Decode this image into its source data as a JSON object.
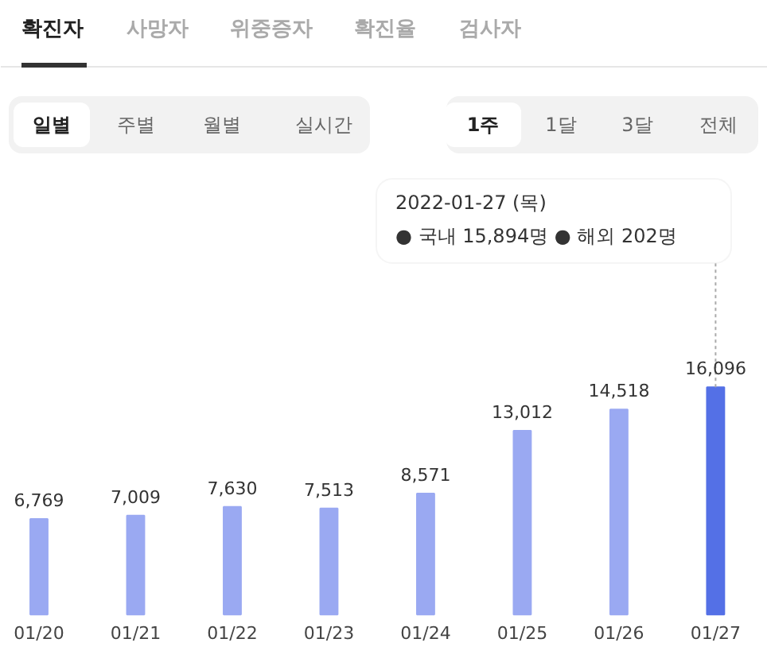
{
  "chart_data": {
    "type": "bar",
    "categories": [
      "01/20",
      "01/21",
      "01/22",
      "01/23",
      "01/24",
      "01/25",
      "01/26",
      "01/27"
    ],
    "values": [
      6769,
      7009,
      7630,
      7513,
      8571,
      13012,
      14518,
      16096
    ],
    "colors": [
      "#9aa9f2",
      "#9aa9f2",
      "#9aa9f2",
      "#9aa9f2",
      "#9aa9f2",
      "#9aa9f2",
      "#9aa9f2",
      "#5470e6"
    ],
    "value_labels": [
      "6,769",
      "7,009",
      "7,630",
      "7,513",
      "8,571",
      "13,012",
      "14,518",
      "16,096"
    ],
    "annotations": [
      "확진자",
      "사망자",
      "위중증자",
      "확진율",
      "검사자",
      "일별",
      "주별",
      "월별",
      "실시간",
      "1주",
      "1달",
      "3달",
      "전체",
      "2022-01-27 (목)\n● 국내 15,894명  ● 해외 202명"
    ]
  }
}
